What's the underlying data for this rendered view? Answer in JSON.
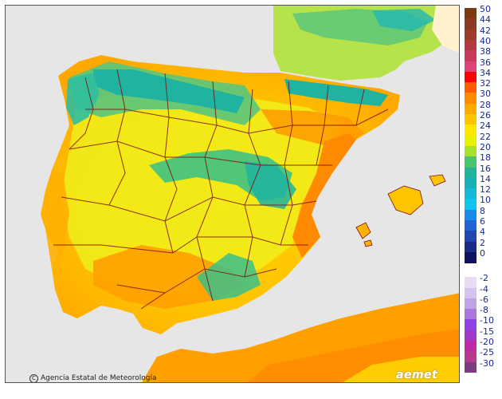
{
  "map": {
    "credit": "Agencia Estatal de Meteorología",
    "brand": "aemet"
  },
  "legend": {
    "positive": [
      {
        "label": "50",
        "color": "#7b3a12"
      },
      {
        "label": "44",
        "color": "#8e3a20"
      },
      {
        "label": "42",
        "color": "#9f3b2a"
      },
      {
        "label": "40",
        "color": "#b33a3f"
      },
      {
        "label": "38",
        "color": "#c83b5c"
      },
      {
        "label": "36",
        "color": "#e0427a"
      },
      {
        "label": "34",
        "color": "#ff0000"
      },
      {
        "label": "32",
        "color": "#ff5a00"
      },
      {
        "label": "30",
        "color": "#ff8a00"
      },
      {
        "label": "28",
        "color": "#ffa800"
      },
      {
        "label": "26",
        "color": "#ffc400"
      },
      {
        "label": "24",
        "color": "#ffe600"
      },
      {
        "label": "22",
        "color": "#e6f000"
      },
      {
        "label": "20",
        "color": "#a8e02a"
      },
      {
        "label": "18",
        "color": "#46c66a"
      },
      {
        "label": "16",
        "color": "#22b39a"
      },
      {
        "label": "14",
        "color": "#18b0b8"
      },
      {
        "label": "12",
        "color": "#15b8d8"
      },
      {
        "label": "10",
        "color": "#10c4f0"
      },
      {
        "label": "8",
        "color": "#1a8ce8"
      },
      {
        "label": "6",
        "color": "#1f64d6"
      },
      {
        "label": "4",
        "color": "#2046b0"
      },
      {
        "label": "2",
        "color": "#1c2a88"
      },
      {
        "label": "0",
        "color": "#0e1260"
      }
    ],
    "negative": [
      {
        "label": "-2",
        "color": "#e8dcf4"
      },
      {
        "label": "-4",
        "color": "#d6c2ee"
      },
      {
        "label": "-6",
        "color": "#c0a2e6"
      },
      {
        "label": "-8",
        "color": "#a878e0"
      },
      {
        "label": "-10",
        "color": "#8e44e4"
      },
      {
        "label": "-15",
        "color": "#a238c8"
      },
      {
        "label": "-20",
        "color": "#c02aa6"
      },
      {
        "label": "-25",
        "color": "#b83a8c"
      },
      {
        "label": "-30",
        "color": "#7e3c80"
      }
    ]
  }
}
